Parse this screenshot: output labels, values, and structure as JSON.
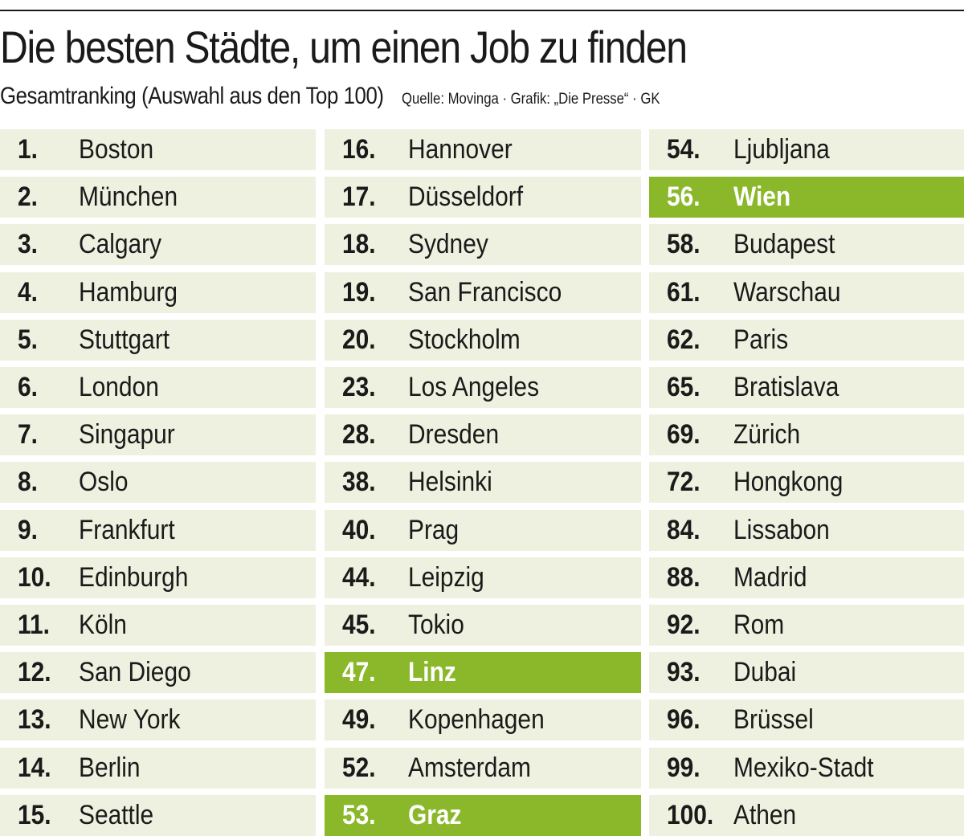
{
  "title": "Die besten Städte, um einen Job zu finden",
  "subtitle": "Gesamtranking (Auswahl aus den Top 100)",
  "source": "Quelle: Movinga · Grafik: „Die Presse“ · GK",
  "colors": {
    "row_background": "#eef1e0",
    "highlight": "#8ab82a",
    "highlight_text": "#ffffff"
  },
  "chart_data": {
    "type": "table",
    "title": "Die besten Städte, um einen Job zu finden",
    "subtitle": "Gesamtranking (Auswahl aus den Top 100)",
    "columns": [
      [
        {
          "rank": "1.",
          "city": "Boston"
        },
        {
          "rank": "2.",
          "city": "München"
        },
        {
          "rank": "3.",
          "city": "Calgary"
        },
        {
          "rank": "4.",
          "city": "Hamburg"
        },
        {
          "rank": "5.",
          "city": "Stuttgart"
        },
        {
          "rank": "6.",
          "city": "London"
        },
        {
          "rank": "7.",
          "city": "Singapur"
        },
        {
          "rank": "8.",
          "city": "Oslo"
        },
        {
          "rank": "9.",
          "city": "Frankfurt"
        },
        {
          "rank": "10.",
          "city": "Edinburgh"
        },
        {
          "rank": "11.",
          "city": "Köln"
        },
        {
          "rank": "12.",
          "city": "San Diego"
        },
        {
          "rank": "13.",
          "city": "New York"
        },
        {
          "rank": "14.",
          "city": "Berlin"
        },
        {
          "rank": "15.",
          "city": "Seattle"
        }
      ],
      [
        {
          "rank": "16.",
          "city": "Hannover"
        },
        {
          "rank": "17.",
          "city": "Düsseldorf"
        },
        {
          "rank": "18.",
          "city": "Sydney"
        },
        {
          "rank": "19.",
          "city": "San Francisco"
        },
        {
          "rank": "20.",
          "city": "Stockholm"
        },
        {
          "rank": "23.",
          "city": "Los Angeles"
        },
        {
          "rank": "28.",
          "city": "Dresden"
        },
        {
          "rank": "38.",
          "city": "Helsinki"
        },
        {
          "rank": "40.",
          "city": "Prag"
        },
        {
          "rank": "44.",
          "city": "Leipzig"
        },
        {
          "rank": "45.",
          "city": "Tokio"
        },
        {
          "rank": "47.",
          "city": "Linz",
          "highlight": true
        },
        {
          "rank": "49.",
          "city": "Kopenhagen"
        },
        {
          "rank": "52.",
          "city": "Amsterdam"
        },
        {
          "rank": "53.",
          "city": "Graz",
          "highlight": true
        }
      ],
      [
        {
          "rank": "54.",
          "city": "Ljubljana"
        },
        {
          "rank": "56.",
          "city": "Wien",
          "highlight": true
        },
        {
          "rank": "58.",
          "city": "Budapest"
        },
        {
          "rank": "61.",
          "city": "Warschau"
        },
        {
          "rank": "62.",
          "city": "Paris"
        },
        {
          "rank": "65.",
          "city": "Bratislava"
        },
        {
          "rank": "69.",
          "city": "Zürich"
        },
        {
          "rank": "72.",
          "city": "Hongkong"
        },
        {
          "rank": "84.",
          "city": "Lissabon"
        },
        {
          "rank": "88.",
          "city": "Madrid"
        },
        {
          "rank": "92.",
          "city": "Rom"
        },
        {
          "rank": "93.",
          "city": "Dubai"
        },
        {
          "rank": "96.",
          "city": "Brüssel"
        },
        {
          "rank": "99.",
          "city": "Mexiko-Stadt"
        },
        {
          "rank": "100.",
          "city": "Athen"
        }
      ]
    ]
  }
}
